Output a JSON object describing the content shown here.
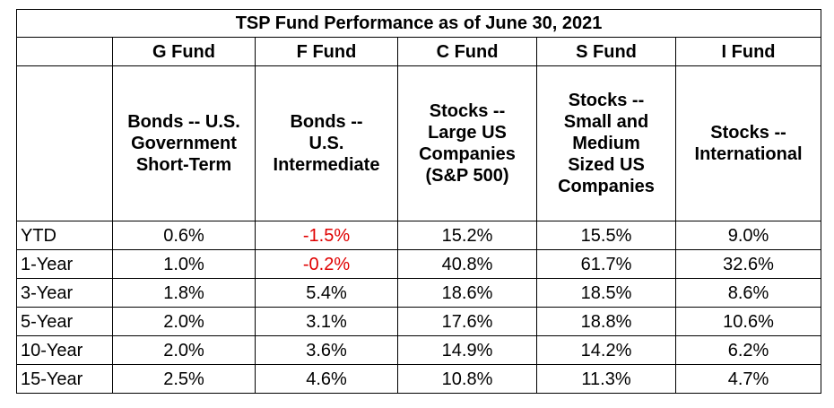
{
  "table": {
    "title": "TSP Fund Performance as of June 30, 2021",
    "funds": [
      "G Fund",
      "F Fund",
      "C Fund",
      "S Fund",
      "I Fund"
    ],
    "descriptions": [
      "Bonds -- U.S. Government Short-Term",
      "Bonds -- U.S. Intermediate",
      "Stocks -- Large US Companies (S&P 500)",
      "Stocks -- Small and Medium Sized US Companies",
      "Stocks -- International"
    ],
    "rows": [
      {
        "period": "YTD",
        "values": [
          "0.6%",
          "-1.5%",
          "15.2%",
          "15.5%",
          "9.0%"
        ]
      },
      {
        "period": "1-Year",
        "values": [
          "1.0%",
          "-0.2%",
          "40.8%",
          "61.7%",
          "32.6%"
        ]
      },
      {
        "period": "3-Year",
        "values": [
          "1.8%",
          "5.4%",
          "18.6%",
          "18.5%",
          "8.6%"
        ]
      },
      {
        "period": "5-Year",
        "values": [
          "2.0%",
          "3.1%",
          "17.6%",
          "18.8%",
          "10.6%"
        ]
      },
      {
        "period": "10-Year",
        "values": [
          "2.0%",
          "3.6%",
          "14.9%",
          "14.2%",
          "6.2%"
        ]
      },
      {
        "period": "15-Year",
        "values": [
          "2.5%",
          "4.6%",
          "10.8%",
          "11.3%",
          "4.7%"
        ]
      }
    ]
  },
  "colors": {
    "negative": "#e00000",
    "text": "#000000",
    "border": "#000000"
  }
}
